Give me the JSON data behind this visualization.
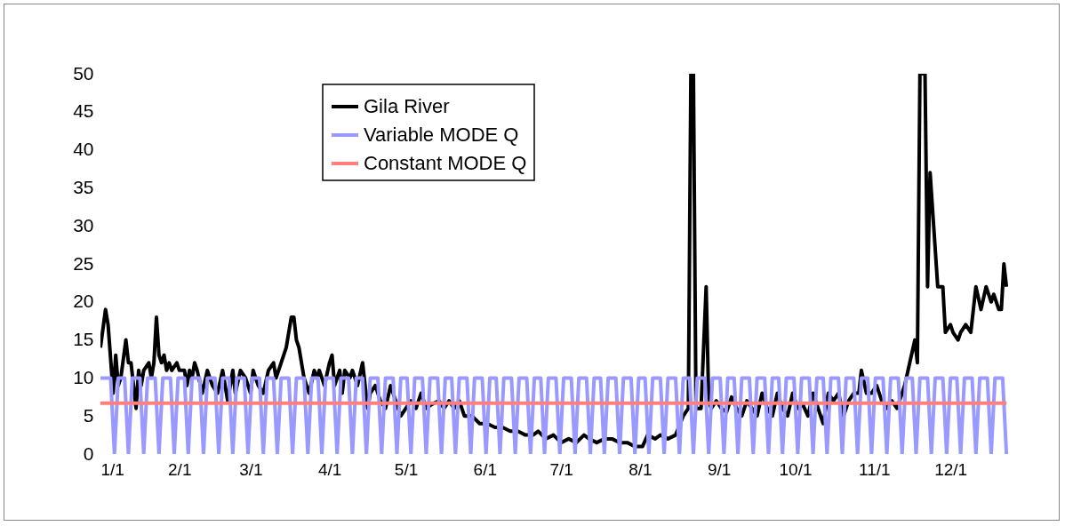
{
  "chart_data": {
    "type": "line",
    "xlim": [
      "--01-01",
      "--12-24"
    ],
    "ylim": [
      0,
      50
    ],
    "xticks": [
      {
        "value": "--01-01",
        "label": "1/1"
      },
      {
        "value": "--02-01",
        "label": "2/1"
      },
      {
        "value": "--03-01",
        "label": "3/1"
      },
      {
        "value": "--04-01",
        "label": "4/1"
      },
      {
        "value": "--05-01",
        "label": "5/1"
      },
      {
        "value": "--06-01",
        "label": "6/1"
      },
      {
        "value": "--07-01",
        "label": "7/1"
      },
      {
        "value": "--08-01",
        "label": "8/1"
      },
      {
        "value": "--09-01",
        "label": "9/1"
      },
      {
        "value": "--10-01",
        "label": "10/1"
      },
      {
        "value": "--11-01",
        "label": "11/1"
      },
      {
        "value": "--12-01",
        "label": "12/1"
      }
    ],
    "yticks": [
      0,
      5,
      10,
      15,
      20,
      25,
      30,
      35,
      40,
      45,
      50
    ],
    "grid": false,
    "legend": "top",
    "line_style": "solid",
    "marker": "none",
    "series": [
      {
        "name": "Gila River",
        "color": "#000000",
        "x": [
          "--01-01",
          "--01-03",
          "--01-04",
          "--01-06",
          "--01-07",
          "--01-08",
          "--01-09",
          "--01-11",
          "--01-12",
          "--01-13",
          "--01-14",
          "--01-15",
          "--01-16",
          "--01-17",
          "--01-18",
          "--01-20",
          "--01-21",
          "--01-22",
          "--01-23",
          "--01-24",
          "--01-25",
          "--01-26",
          "--01-27",
          "--01-28",
          "--01-29",
          "--01-31",
          "--02-01",
          "--02-03",
          "--02-04",
          "--02-05",
          "--02-06",
          "--02-07",
          "--02-08",
          "--02-10",
          "--02-12",
          "--02-14",
          "--02-16",
          "--02-18",
          "--02-20",
          "--02-22",
          "--02-23",
          "--02-25",
          "--02-27",
          "--03-01",
          "--03-02",
          "--03-04",
          "--03-06",
          "--03-08",
          "--03-10",
          "--03-11",
          "--03-13",
          "--03-15",
          "--03-17",
          "--03-18",
          "--03-19",
          "--03-20",
          "--03-22",
          "--03-24",
          "--03-26",
          "--03-27",
          "--03-28",
          "--03-30",
          "--04-01",
          "--04-02",
          "--04-03",
          "--04-05",
          "--04-06",
          "--04-07",
          "--04-09",
          "--04-10",
          "--04-12",
          "--04-14",
          "--04-16",
          "--04-17",
          "--04-19",
          "--04-21",
          "--04-23",
          "--04-25",
          "--04-27",
          "--04-29",
          "--05-01",
          "--05-03",
          "--05-05",
          "--05-07",
          "--05-09",
          "--05-11",
          "--05-14",
          "--05-16",
          "--05-18",
          "--05-20",
          "--05-22",
          "--05-24",
          "--05-27",
          "--05-30",
          "--06-02",
          "--06-05",
          "--06-08",
          "--06-11",
          "--06-14",
          "--06-17",
          "--06-20",
          "--06-22",
          "--06-25",
          "--06-28",
          "--07-01",
          "--07-04",
          "--07-07",
          "--07-10",
          "--07-12",
          "--07-15",
          "--07-18",
          "--07-21",
          "--07-24",
          "--07-27",
          "--07-30",
          "--08-02",
          "--08-04",
          "--08-07",
          "--08-09",
          "--08-12",
          "--08-15",
          "--08-18",
          "--08-20",
          "--08-21",
          "--08-22",
          "--08-23",
          "--08-25",
          "--08-27",
          "--08-28",
          "--08-29",
          "--08-31",
          "--09-02",
          "--09-04",
          "--09-06",
          "--09-08",
          "--09-10",
          "--09-12",
          "--09-14",
          "--09-16",
          "--09-18",
          "--09-20",
          "--09-22",
          "--09-24",
          "--09-26",
          "--09-28",
          "--09-30",
          "--10-02",
          "--10-04",
          "--10-06",
          "--10-08",
          "--10-10",
          "--10-12",
          "--10-14",
          "--10-16",
          "--10-18",
          "--10-20",
          "--10-22",
          "--10-24",
          "--10-26",
          "--10-27",
          "--10-29",
          "--10-31",
          "--11-02",
          "--11-04",
          "--11-06",
          "--11-08",
          "--11-10",
          "--11-13",
          "--11-15",
          "--11-17",
          "--11-18",
          "--11-19",
          "--11-21",
          "--11-22",
          "--11-23",
          "--11-26",
          "--11-28",
          "--11-29",
          "--12-01",
          "--12-02",
          "--12-04",
          "--12-05",
          "--12-07",
          "--12-09",
          "--12-11",
          "--12-13",
          "--12-15",
          "--12-17",
          "--12-18",
          "--12-20",
          "--12-21",
          "--12-22",
          "--12-23"
        ],
        "values": [
          14,
          19,
          17,
          8,
          13,
          9,
          10,
          15,
          12,
          12,
          9,
          6,
          11,
          9,
          11,
          12,
          10,
          12,
          18,
          13,
          12,
          13,
          11,
          12,
          11,
          12,
          11,
          11,
          9,
          11,
          10,
          12,
          11,
          8,
          11,
          9,
          8,
          11,
          7,
          11,
          8,
          11,
          10,
          8,
          11,
          9,
          8,
          11,
          12,
          10,
          12,
          14,
          18,
          18,
          15,
          14,
          10,
          8,
          11,
          10,
          11,
          9,
          12,
          13,
          9,
          11,
          8,
          11,
          10,
          11,
          9,
          12,
          6,
          8,
          9,
          7,
          6,
          9,
          7,
          5,
          6,
          7,
          6,
          8,
          6,
          6.5,
          7,
          6,
          7,
          6,
          7,
          5,
          5,
          4,
          4,
          3.5,
          3.5,
          3,
          3,
          2.5,
          2.5,
          3,
          2,
          2.5,
          1.5,
          2,
          1.5,
          2.5,
          2,
          1.5,
          2,
          2,
          1.5,
          1.5,
          1,
          1,
          2.5,
          2,
          2.5,
          2,
          2.5,
          5,
          6,
          50,
          50,
          6,
          6,
          22,
          7,
          6,
          7,
          6,
          5.5,
          7.5,
          6,
          5,
          7,
          6,
          5,
          8,
          6,
          5,
          8,
          6,
          5,
          8,
          6,
          6.5,
          5,
          8,
          6,
          4,
          8,
          7,
          8,
          5,
          7,
          8,
          8,
          11,
          8,
          8,
          9,
          7,
          6,
          7,
          6,
          9,
          12,
          15,
          12,
          50,
          50,
          22,
          37,
          22,
          22,
          16,
          17,
          16,
          15,
          16,
          17,
          16,
          22,
          19,
          22,
          20,
          21,
          19,
          19,
          25,
          22
        ]
      },
      {
        "name": "Variable MODE Q",
        "color": "#9999ff",
        "x": [
          "--01-01",
          "--01-05",
          "--01-06T12:00",
          "--01-08",
          "--01-10T12:00",
          "--01-12",
          "--01-13T12:00",
          "--01-16T12:00",
          "--01-18",
          "--01-19T12:00",
          "--01-22T12:00",
          "--01-24",
          "--01-25T12:00",
          "--01-28T12:00",
          "--01-30",
          "--01-31T12:00",
          "--02-03",
          "--02-04T12:00",
          "--02-06",
          "--02-09",
          "--02-10T12:00",
          "--02-12",
          "--02-15",
          "--02-16T12:00",
          "--02-18",
          "--02-20T12:00",
          "--02-22",
          "--02-23T12:00",
          "--02-26T12:00",
          "--02-28",
          "--03-01T12:00",
          "--03-04T12:00",
          "--03-06",
          "--03-07T12:00",
          "--03-10",
          "--03-11T12:00",
          "--03-13",
          "--03-16",
          "--03-17T12:00",
          "--03-19",
          "--03-22",
          "--03-23T12:00",
          "--03-25",
          "--03-27T12:00",
          "--03-29",
          "--03-30T12:00",
          "--04-02T12:00",
          "--04-04",
          "--04-05T12:00",
          "--04-08T12:00",
          "--04-10",
          "--04-11T12:00",
          "--04-14",
          "--04-15T12:00",
          "--04-17",
          "--04-20",
          "--04-21T12:00",
          "--04-23",
          "--04-26",
          "--04-27T12:00",
          "--04-29",
          "--05-01T12:00",
          "--05-03",
          "--05-04T12:00",
          "--05-07T12:00",
          "--05-09",
          "--05-10T12:00",
          "--05-13T12:00",
          "--05-15",
          "--05-16T12:00",
          "--05-19",
          "--05-20T12:00",
          "--05-22",
          "--05-25",
          "--05-26T12:00",
          "--05-28",
          "--05-31",
          "--06-01T12:00",
          "--06-03",
          "--06-05T12:00",
          "--06-07",
          "--06-08T12:00",
          "--06-11T12:00",
          "--06-13",
          "--06-14T12:00",
          "--06-17T12:00",
          "--06-19",
          "--06-20T12:00",
          "--06-23",
          "--06-24T12:00",
          "--06-26",
          "--06-29",
          "--06-30T12:00",
          "--07-02",
          "--07-05",
          "--07-06T12:00",
          "--07-08",
          "--07-11",
          "--07-12T12:00",
          "--07-14",
          "--07-16T12:00",
          "--07-18",
          "--07-19T12:00",
          "--07-22T12:00",
          "--07-24",
          "--07-25T12:00",
          "--07-28T12:00",
          "--07-30",
          "--07-31T12:00",
          "--08-03",
          "--08-04T12:00",
          "--08-06",
          "--08-09",
          "--08-10T12:00",
          "--08-12",
          "--08-15",
          "--08-16T12:00",
          "--08-18",
          "--08-20T12:00",
          "--08-22",
          "--08-23T12:00",
          "--08-26T12:00",
          "--08-28",
          "--08-29T12:00",
          "--09-01T12:00",
          "--09-03",
          "--09-04T12:00",
          "--09-07",
          "--09-08T12:00",
          "--09-10",
          "--09-13",
          "--09-14T12:00",
          "--09-16",
          "--09-19",
          "--09-20T12:00",
          "--09-22",
          "--09-24T12:00",
          "--09-26",
          "--09-27T12:00",
          "--09-30T12:00",
          "--10-02",
          "--10-03T12:00",
          "--10-06T12:00",
          "--10-08",
          "--10-09T12:00",
          "--10-12",
          "--10-13T12:00",
          "--10-15",
          "--10-18",
          "--10-19T12:00",
          "--10-21",
          "--10-24",
          "--10-25T12:00",
          "--10-27",
          "--10-29T12:00",
          "--10-31",
          "--11-01T12:00",
          "--11-04T12:00",
          "--11-06",
          "--11-07T12:00",
          "--11-10T12:00",
          "--11-12",
          "--11-13T12:00",
          "--11-16",
          "--11-17T12:00",
          "--11-19",
          "--11-22",
          "--11-23T12:00",
          "--11-25",
          "--11-28",
          "--11-29T12:00",
          "--12-01",
          "--12-03T12:00",
          "--12-05",
          "--12-06T12:00",
          "--12-09T12:00",
          "--12-11",
          "--12-12T12:00",
          "--12-15T12:00",
          "--12-17",
          "--12-18T12:00",
          "--12-21T12:00",
          "--12-23"
        ],
        "values": [
          10,
          10,
          0,
          10,
          10,
          0,
          10,
          10,
          0,
          10,
          10,
          0,
          10,
          10,
          0,
          10,
          10,
          0,
          10,
          10,
          0,
          10,
          10,
          0,
          10,
          10,
          0,
          10,
          10,
          0,
          10,
          10,
          0,
          10,
          10,
          0,
          10,
          10,
          0,
          10,
          10,
          0,
          10,
          10,
          0,
          10,
          10,
          0,
          10,
          10,
          0,
          10,
          10,
          0,
          10,
          10,
          0,
          10,
          10,
          0,
          10,
          10,
          0,
          10,
          10,
          0,
          10,
          10,
          0,
          10,
          10,
          0,
          10,
          10,
          0,
          10,
          10,
          0,
          10,
          10,
          0,
          10,
          10,
          0,
          10,
          10,
          0,
          10,
          10,
          0,
          10,
          10,
          0,
          10,
          10,
          0,
          10,
          10,
          0,
          10,
          10,
          0,
          10,
          10,
          0,
          10,
          10,
          0,
          10,
          10,
          0,
          10,
          10,
          0,
          10,
          10,
          0,
          10,
          10,
          0,
          10,
          10,
          0,
          10,
          10,
          0,
          10,
          10,
          0,
          10,
          10,
          0,
          10,
          10,
          0,
          10,
          10,
          0,
          10,
          10,
          0,
          10,
          10,
          0,
          10,
          10,
          0,
          10,
          10,
          0,
          10,
          10,
          0,
          10,
          10,
          0,
          10,
          10,
          0,
          10,
          10,
          0,
          10,
          10,
          0,
          10,
          10,
          0,
          10,
          10,
          0,
          10,
          10,
          0,
          10,
          10,
          0,
          10,
          10,
          0,
          10,
          10,
          0
        ]
      },
      {
        "name": "Constant MODE Q",
        "color": "#ff7f7f",
        "x": [
          "--01-01",
          "--12-23"
        ],
        "values": [
          6.7,
          6.7
        ]
      }
    ]
  }
}
